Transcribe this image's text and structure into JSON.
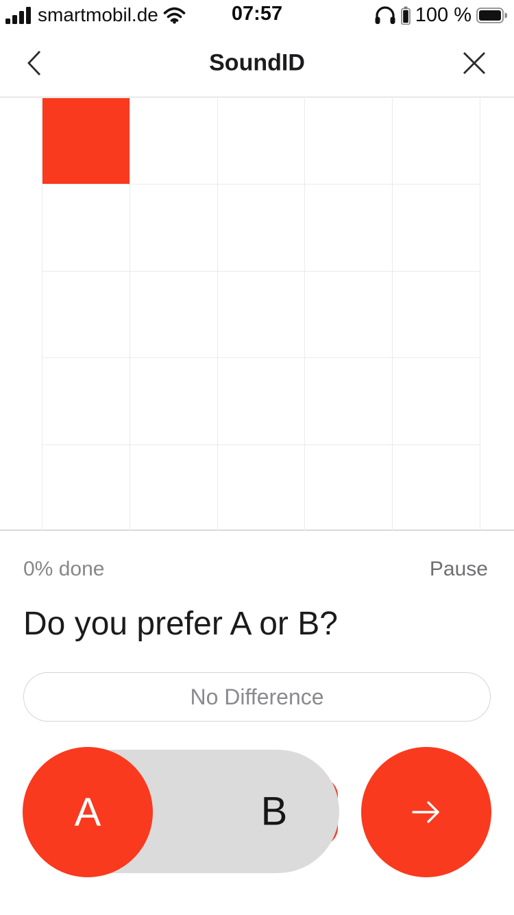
{
  "status_bar": {
    "carrier": "smartmobil.de",
    "time": "07:57",
    "battery_percent": "100 %"
  },
  "nav": {
    "title": "SoundID"
  },
  "test_grid": {
    "rows": 5,
    "cols": 5,
    "filled_cells": [
      [
        0,
        0
      ]
    ],
    "fill_color": "#F93A1E"
  },
  "progress": {
    "done_label": "0% done",
    "pause_label": "Pause"
  },
  "question": {
    "title": "Do you prefer A or B?"
  },
  "choices": {
    "no_difference_label": "No Difference",
    "a_label": "A",
    "b_label": "B"
  },
  "colors": {
    "accent": "#F93A1E",
    "track": "#DBDBDB"
  }
}
